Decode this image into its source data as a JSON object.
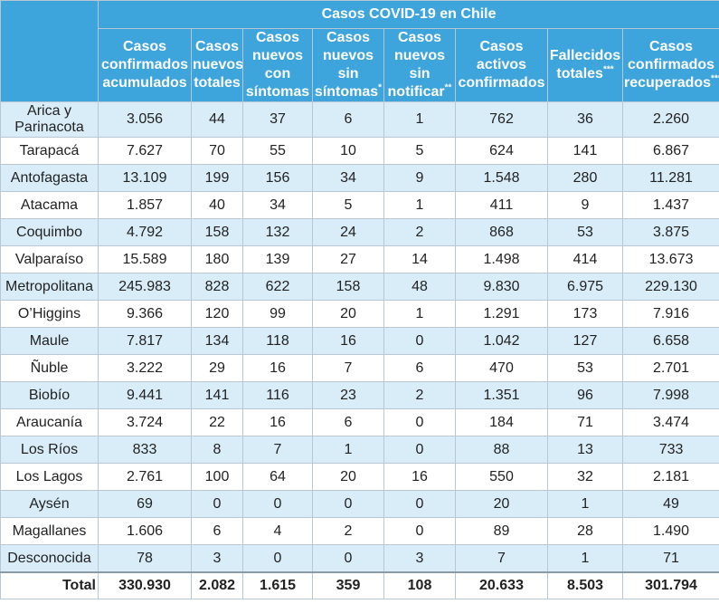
{
  "table": {
    "title": "Casos COVID-19 en Chile",
    "columns": [
      {
        "text": "Casos confirmados acumulados",
        "mark": ""
      },
      {
        "text": "Casos nuevos totales",
        "mark": ""
      },
      {
        "text": "Casos nuevos con síntomas",
        "mark": ""
      },
      {
        "text": "Casos nuevos sin síntomas",
        "mark": "*"
      },
      {
        "text": "Casos nuevos sin notificar",
        "mark": "**"
      },
      {
        "text": "Casos activos confirmados",
        "mark": ""
      },
      {
        "text": "Fallecidos totales",
        "mark": "***"
      },
      {
        "text": "Casos confirmados recuperados",
        "mark": "****"
      }
    ],
    "rows": [
      [
        "Arica y Parinacota",
        "3.056",
        "44",
        "37",
        "6",
        "1",
        "762",
        "36",
        "2.260"
      ],
      [
        "Tarapacá",
        "7.627",
        "70",
        "55",
        "10",
        "5",
        "624",
        "141",
        "6.867"
      ],
      [
        "Antofagasta",
        "13.109",
        "199",
        "156",
        "34",
        "9",
        "1.548",
        "280",
        "11.281"
      ],
      [
        "Atacama",
        "1.857",
        "40",
        "34",
        "5",
        "1",
        "411",
        "9",
        "1.437"
      ],
      [
        "Coquimbo",
        "4.792",
        "158",
        "132",
        "24",
        "2",
        "868",
        "53",
        "3.875"
      ],
      [
        "Valparaíso",
        "15.589",
        "180",
        "139",
        "27",
        "14",
        "1.498",
        "414",
        "13.673"
      ],
      [
        "Metropolitana",
        "245.983",
        "828",
        "622",
        "158",
        "48",
        "9.830",
        "6.975",
        "229.130"
      ],
      [
        "O’Higgins",
        "9.366",
        "120",
        "99",
        "20",
        "1",
        "1.291",
        "173",
        "7.916"
      ],
      [
        "Maule",
        "7.817",
        "134",
        "118",
        "16",
        "0",
        "1.042",
        "127",
        "6.658"
      ],
      [
        "Ñuble",
        "3.222",
        "29",
        "16",
        "7",
        "6",
        "470",
        "53",
        "2.701"
      ],
      [
        "Biobío",
        "9.441",
        "141",
        "116",
        "23",
        "2",
        "1.351",
        "96",
        "7.998"
      ],
      [
        "Araucanía",
        "3.724",
        "22",
        "16",
        "6",
        "0",
        "184",
        "71",
        "3.474"
      ],
      [
        "Los Ríos",
        "833",
        "8",
        "7",
        "1",
        "0",
        "88",
        "13",
        "733"
      ],
      [
        "Los Lagos",
        "2.761",
        "100",
        "64",
        "20",
        "16",
        "550",
        "32",
        "2.181"
      ],
      [
        "Aysén",
        "69",
        "0",
        "0",
        "0",
        "0",
        "20",
        "1",
        "49"
      ],
      [
        "Magallanes",
        "1.606",
        "6",
        "4",
        "2",
        "0",
        "89",
        "28",
        "1.490"
      ],
      [
        "Desconocida",
        "78",
        "3",
        "0",
        "0",
        "3",
        "7",
        "1",
        "71"
      ]
    ],
    "total": [
      "Total",
      "330.930",
      "2.082",
      "1.615",
      "359",
      "108",
      "20.633",
      "8.503",
      "301.794"
    ]
  },
  "colors": {
    "header": "#3da4dc",
    "row_alt": "#d9edf8",
    "row_plain": "#ffffff"
  }
}
